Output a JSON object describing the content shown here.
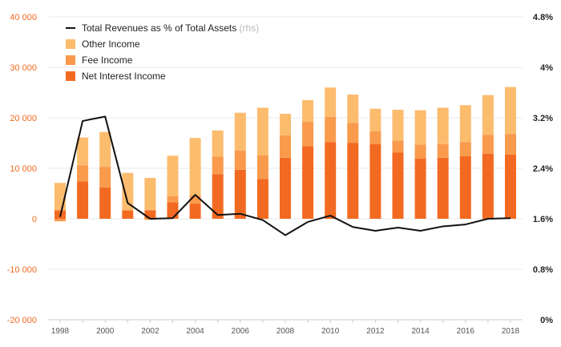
{
  "chart_data": {
    "type": "bar",
    "stacked": true,
    "x": [
      1998,
      1999,
      2000,
      2001,
      2002,
      2003,
      2004,
      2005,
      2006,
      2007,
      2008,
      2009,
      2010,
      2011,
      2012,
      2013,
      2014,
      2015,
      2016,
      2017,
      2018
    ],
    "x_tick_labels": [
      "1998",
      "2000",
      "2002",
      "2004",
      "2006",
      "2008",
      "2010",
      "2012",
      "2014",
      "2016",
      "2018"
    ],
    "y_left": {
      "ylim": [
        -20000,
        40000
      ],
      "ticks": [
        -20000,
        -10000,
        0,
        10000,
        20000,
        30000,
        40000
      ],
      "tick_labels": [
        "-20 000",
        "-10 000",
        "0",
        "10 000",
        "20 000",
        "30 000",
        "40 000"
      ]
    },
    "y_right": {
      "ylim": [
        0,
        4.8
      ],
      "ticks": [
        0,
        0.8,
        1.6,
        2.4,
        3.2,
        4.0,
        4.8
      ],
      "tick_labels": [
        "0%",
        "0.8%",
        "1.6%",
        "2.4%",
        "3.2%",
        "4%",
        "4.8%"
      ]
    },
    "series": [
      {
        "name": "Net Interest Income",
        "kind": "bar",
        "axis": "left",
        "color": "#f26a21",
        "values": [
          1700,
          7400,
          6200,
          1600,
          1700,
          3300,
          3000,
          8800,
          9700,
          7900,
          12100,
          14400,
          15200,
          15000,
          14800,
          13100,
          11900,
          12100,
          12400,
          12900,
          12700
        ]
      },
      {
        "name": "Fee Income",
        "kind": "bar",
        "axis": "left",
        "color": "#f99a4c",
        "values": [
          -500,
          3200,
          4100,
          200,
          -200,
          1200,
          1600,
          3500,
          3800,
          4700,
          4400,
          4800,
          5000,
          4000,
          2500,
          2400,
          2800,
          2700,
          2800,
          3700,
          4100
        ]
      },
      {
        "name": "Other Income",
        "kind": "bar",
        "axis": "left",
        "color": "#fcbc6e",
        "values": [
          5400,
          5500,
          6900,
          7300,
          6400,
          8000,
          11400,
          5200,
          7500,
          9400,
          4300,
          4300,
          5800,
          5600,
          4500,
          6100,
          6800,
          7200,
          7300,
          7900,
          9300
        ]
      },
      {
        "name": "Total Revenues as % of Total Assets",
        "kind": "line",
        "axis": "right",
        "color": "#111111",
        "values": [
          1.63,
          3.15,
          3.22,
          1.85,
          1.6,
          1.61,
          1.98,
          1.66,
          1.68,
          1.58,
          1.34,
          1.55,
          1.65,
          1.47,
          1.41,
          1.46,
          1.41,
          1.48,
          1.51,
          1.6,
          1.61
        ]
      }
    ],
    "legend": [
      {
        "label": "Total Revenues as % of Total Assets",
        "suffix": "(rhs)",
        "type": "line",
        "color": "#111111"
      },
      {
        "label": "Other Income",
        "type": "box",
        "color": "#fcbc6e"
      },
      {
        "label": "Fee Income",
        "type": "box",
        "color": "#f99a4c"
      },
      {
        "label": "Net Interest Income",
        "type": "box",
        "color": "#f26a21"
      }
    ],
    "legend_position": "top-left",
    "grid": true,
    "colors": {
      "grid": "#e8e8e8",
      "left_tick": "#f26a21",
      "right_tick": "#222222"
    }
  }
}
